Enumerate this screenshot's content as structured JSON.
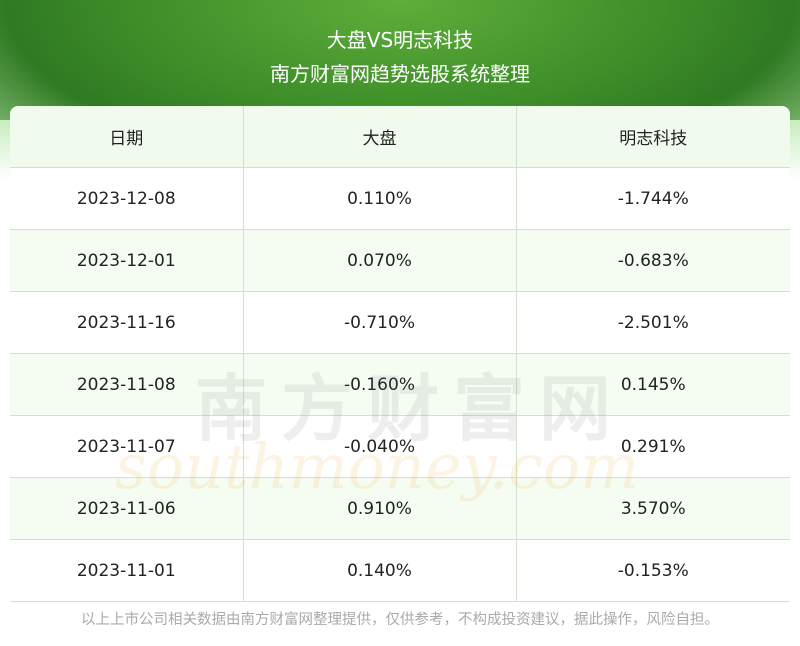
{
  "header": {
    "title": "大盘VS明志科技",
    "subtitle": "南方财富网趋势选股系统整理"
  },
  "table": {
    "columns": [
      "日期",
      "大盘",
      "明志科技"
    ],
    "rows": [
      [
        "2023-12-08",
        "0.110%",
        "-1.744%"
      ],
      [
        "2023-12-01",
        "0.070%",
        "-0.683%"
      ],
      [
        "2023-11-16",
        "-0.710%",
        "-2.501%"
      ],
      [
        "2023-11-08",
        "-0.160%",
        "0.145%"
      ],
      [
        "2023-11-07",
        "-0.040%",
        "0.291%"
      ],
      [
        "2023-11-06",
        "0.910%",
        "3.570%"
      ],
      [
        "2023-11-01",
        "0.140%",
        "-0.153%"
      ]
    ]
  },
  "watermark": {
    "name": "南方财富网",
    "url": "southmoney.com"
  },
  "footer": "以上上市公司相关数据由南方财富网整理提供，仅供参考，不构成投资建议，据此操作，风险自担。"
}
